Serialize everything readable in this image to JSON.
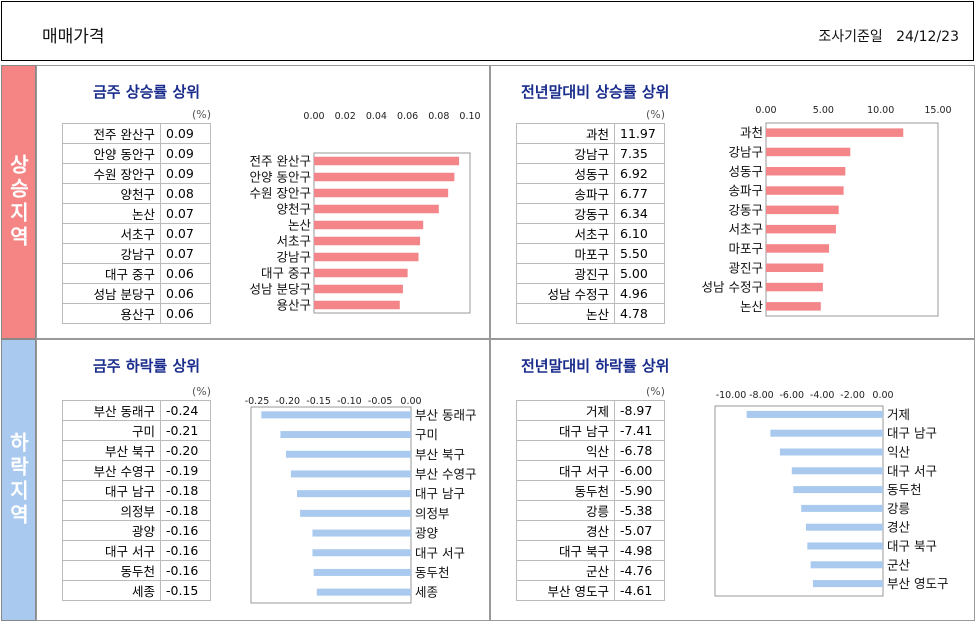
{
  "header": {
    "title": "매매가격",
    "date": "조사기준일   24/12/23"
  },
  "sides": {
    "up": "상승지역",
    "down": "하락지역"
  },
  "units": "(%)",
  "colors": {
    "rise": "#f4868a",
    "fall": "#a9c9ee",
    "title": "#1a2d8c"
  },
  "chart_data": [
    {
      "id": "weekly-rise",
      "type": "bar",
      "title": "금주 상승률 상위",
      "categories": [
        "전주 완산구",
        "안양 동안구",
        "수원 장안구",
        "양천구",
        "논산",
        "서초구",
        "강남구",
        "대구 중구",
        "성남 분당구",
        "용산구"
      ],
      "values_text": [
        "0.09",
        "0.09",
        "0.09",
        "0.08",
        "0.07",
        "0.07",
        "0.07",
        "0.06",
        "0.06",
        "0.06"
      ],
      "values": [
        0.093,
        0.09,
        0.086,
        0.08,
        0.07,
        0.068,
        0.067,
        0.06,
        0.057,
        0.055
      ],
      "xlim": [
        0,
        0.1
      ],
      "ticks": [
        "0.00",
        "0.02",
        "0.04",
        "0.06",
        "0.08",
        "0.10"
      ],
      "tick_values": [
        0,
        0.02,
        0.04,
        0.06,
        0.08,
        0.1
      ],
      "grid": false
    },
    {
      "id": "ytd-rise",
      "type": "bar",
      "title": "전년말대비 상승률 상위",
      "categories": [
        "과천",
        "강남구",
        "성동구",
        "송파구",
        "강동구",
        "서초구",
        "마포구",
        "광진구",
        "성남 수정구",
        "논산"
      ],
      "values_text": [
        "11.97",
        "7.35",
        "6.92",
        "6.77",
        "6.34",
        "6.10",
        "5.50",
        "5.00",
        "4.96",
        "4.78"
      ],
      "values": [
        11.97,
        7.35,
        6.92,
        6.77,
        6.34,
        6.1,
        5.5,
        5.0,
        4.96,
        4.78
      ],
      "xlim": [
        0,
        15
      ],
      "ticks": [
        "0.00",
        "5.00",
        "10.00",
        "15.00"
      ],
      "tick_values": [
        0,
        5,
        10,
        15
      ],
      "grid": false
    },
    {
      "id": "weekly-fall",
      "type": "bar",
      "title": "금주 하락률 상위",
      "categories": [
        "부산 동래구",
        "구미",
        "부산 북구",
        "부산 수영구",
        "대구 남구",
        "의정부",
        "광양",
        "대구 서구",
        "동두천",
        "세종"
      ],
      "values_text": [
        "-0.24",
        "-0.21",
        "-0.20",
        "-0.19",
        "-0.18",
        "-0.18",
        "-0.16",
        "-0.16",
        "-0.16",
        "-0.15"
      ],
      "values": [
        -0.243,
        -0.212,
        -0.203,
        -0.195,
        -0.185,
        -0.18,
        -0.16,
        -0.16,
        -0.158,
        -0.153
      ],
      "xlim": [
        -0.25,
        0
      ],
      "ticks": [
        "-0.25",
        "-0.20",
        "-0.15",
        "-0.10",
        "-0.05",
        "0.00"
      ],
      "tick_values": [
        -0.25,
        -0.2,
        -0.15,
        -0.1,
        -0.05,
        0
      ],
      "grid": false
    },
    {
      "id": "ytd-fall",
      "type": "bar",
      "title": "전년말대비 하락률 상위",
      "categories": [
        "거제",
        "대구 남구",
        "익산",
        "대구 서구",
        "동두천",
        "강릉",
        "경산",
        "대구 북구",
        "군산",
        "부산 영도구"
      ],
      "values_text": [
        "-8.97",
        "-7.41",
        "-6.78",
        "-6.00",
        "-5.90",
        "-5.38",
        "-5.07",
        "-4.98",
        "-4.76",
        "-4.61"
      ],
      "values": [
        -8.97,
        -7.41,
        -6.78,
        -6.0,
        -5.9,
        -5.38,
        -5.07,
        -4.98,
        -4.76,
        -4.61
      ],
      "xlim": [
        -10,
        0
      ],
      "ticks": [
        "-10.00",
        "-8.00",
        "-6.00",
        "-4.00",
        "-2.00",
        "0.00"
      ],
      "tick_values": [
        -10,
        -8,
        -6,
        -4,
        -2,
        0
      ],
      "grid": false
    }
  ]
}
